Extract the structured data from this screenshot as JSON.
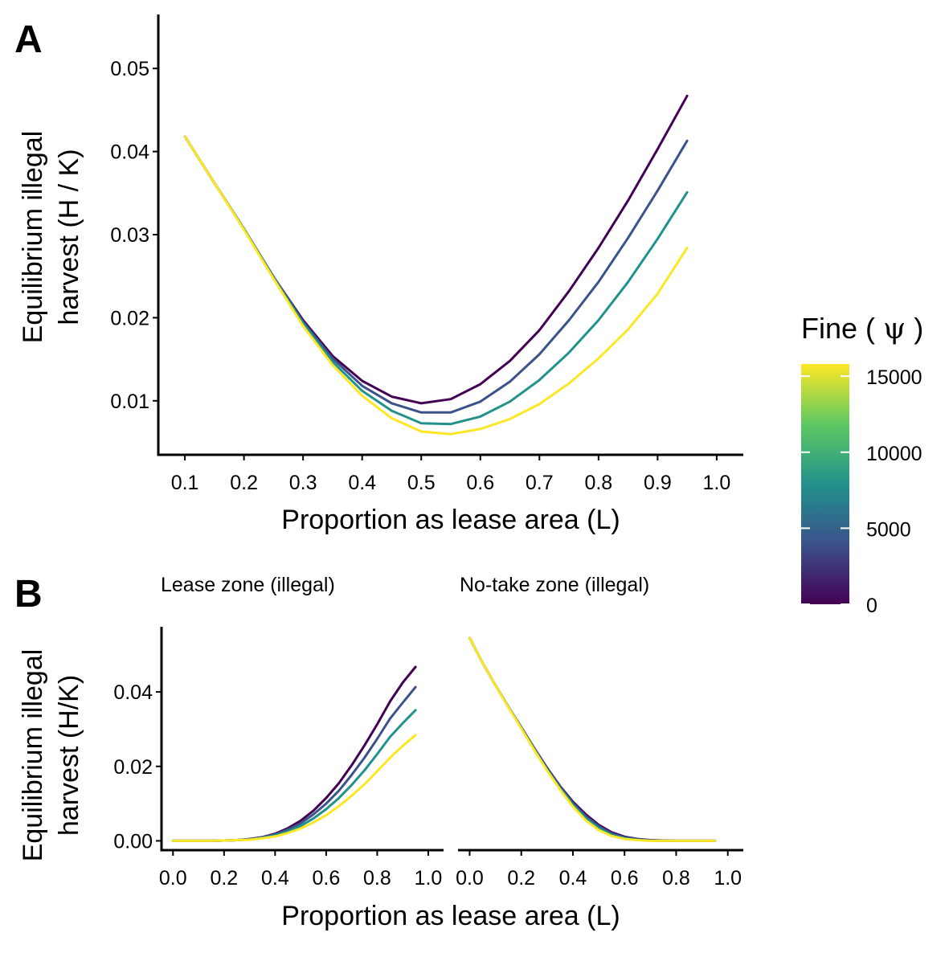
{
  "figure": {
    "panel_a_label": "A",
    "panel_b_label": "B",
    "legend": {
      "title_text": "Fine (",
      "title_symbol": "ψ",
      "title_close": ")",
      "ticks": [
        "15000",
        "10000",
        "5000",
        "0"
      ],
      "tick_values": [
        15000,
        10000,
        5000,
        0
      ],
      "range": [
        0,
        15800
      ],
      "colors": [
        "#440154",
        "#3b528b",
        "#21918c",
        "#5ec962",
        "#fde725"
      ]
    }
  },
  "chart_data": [
    {
      "type": "line",
      "panel": "A",
      "title": "",
      "xlabel": "Proportion as lease area (L)",
      "ylabel_line1": "Equilibrium illegal",
      "ylabel_line2": "harvest (H / K)",
      "xlim": [
        0.055,
        1.045
      ],
      "ylim": [
        0.0035,
        0.0565
      ],
      "xticks": [
        0.1,
        0.2,
        0.3,
        0.4,
        0.5,
        0.6,
        0.7,
        0.8,
        0.9,
        1.0
      ],
      "xtick_labels": [
        "0.1",
        "0.2",
        "0.3",
        "0.4",
        "0.5",
        "0.6",
        "0.7",
        "0.8",
        "0.9",
        "1.0"
      ],
      "yticks": [
        0.01,
        0.02,
        0.03,
        0.04,
        0.05
      ],
      "ytick_labels": [
        "0.01",
        "0.02",
        "0.03",
        "0.04",
        "0.05"
      ],
      "x": [
        0.1,
        0.15,
        0.2,
        0.25,
        0.3,
        0.35,
        0.4,
        0.45,
        0.5,
        0.55,
        0.6,
        0.65,
        0.7,
        0.75,
        0.8,
        0.85,
        0.9,
        0.95
      ],
      "series": [
        {
          "fine": 0,
          "color": "#440154",
          "values": [
            0.0418,
            0.0362,
            0.0307,
            0.0249,
            0.0197,
            0.0154,
            0.0124,
            0.0105,
            0.0097,
            0.0102,
            0.012,
            0.0148,
            0.0185,
            0.0232,
            0.0284,
            0.0341,
            0.0403,
            0.0467
          ]
        },
        {
          "fine": 5000,
          "color": "#3b528b",
          "values": [
            0.0418,
            0.0362,
            0.0307,
            0.0249,
            0.0195,
            0.0151,
            0.0118,
            0.0097,
            0.0086,
            0.0086,
            0.0099,
            0.0123,
            0.0156,
            0.0197,
            0.0243,
            0.0296,
            0.0353,
            0.0413
          ]
        },
        {
          "fine": 10000,
          "color": "#21918c",
          "values": [
            0.0418,
            0.0362,
            0.0307,
            0.0248,
            0.0193,
            0.0147,
            0.0112,
            0.0088,
            0.0073,
            0.0072,
            0.0081,
            0.0099,
            0.0125,
            0.0158,
            0.0197,
            0.0243,
            0.0295,
            0.0351
          ]
        },
        {
          "fine": 15800,
          "color": "#fde725",
          "values": [
            0.0418,
            0.0362,
            0.0306,
            0.0247,
            0.019,
            0.0143,
            0.0106,
            0.0079,
            0.0063,
            0.006,
            0.0066,
            0.0078,
            0.0096,
            0.0121,
            0.0151,
            0.0186,
            0.0229,
            0.0284
          ]
        }
      ]
    },
    {
      "type": "line",
      "panel": "B",
      "title": "",
      "ylabel_line1": "Equilibrium illegal",
      "ylabel_line2": "harvest (H/K)",
      "xlabel": "Proportion as lease area (L)",
      "ylim": [
        -0.0025,
        0.0575
      ],
      "yticks": [
        0.0,
        0.02,
        0.04
      ],
      "ytick_labels": [
        "0.00",
        "0.02",
        "0.04"
      ],
      "facets": [
        {
          "strip": "Lease zone (illegal)",
          "xlim": [
            -0.045,
            1.06
          ],
          "xticks": [
            0.0,
            0.2,
            0.4,
            0.6,
            0.8,
            1.0
          ],
          "xtick_labels": [
            "0.0",
            "0.2",
            "0.4",
            "0.6",
            "0.8",
            "1.0"
          ],
          "x": [
            0.0,
            0.05,
            0.1,
            0.15,
            0.2,
            0.25,
            0.3,
            0.35,
            0.4,
            0.45,
            0.5,
            0.55,
            0.6,
            0.65,
            0.7,
            0.75,
            0.8,
            0.85,
            0.9,
            0.95
          ],
          "series": [
            {
              "fine": 0,
              "color": "#440154",
              "values": [
                0.0,
                0.0,
                0.0,
                0.0,
                0.0001,
                0.0002,
                0.0005,
                0.001,
                0.0019,
                0.0034,
                0.0054,
                0.0081,
                0.0115,
                0.0155,
                0.0203,
                0.0256,
                0.0313,
                0.0374,
                0.0425,
                0.0467
              ]
            },
            {
              "fine": 5000,
              "color": "#3b528b",
              "values": [
                0.0,
                0.0,
                0.0,
                0.0,
                0.0001,
                0.0002,
                0.0004,
                0.0009,
                0.0017,
                0.003,
                0.0047,
                0.0071,
                0.01,
                0.0135,
                0.0177,
                0.0223,
                0.0274,
                0.0328,
                0.0371,
                0.0413
              ]
            },
            {
              "fine": 10000,
              "color": "#21918c",
              "values": [
                0.0,
                0.0,
                0.0,
                0.0,
                0.0001,
                0.0002,
                0.0004,
                0.0008,
                0.0015,
                0.0025,
                0.004,
                0.006,
                0.0085,
                0.0115,
                0.015,
                0.0189,
                0.0233,
                0.0279,
                0.0316,
                0.0351
              ]
            },
            {
              "fine": 15800,
              "color": "#fde725",
              "values": [
                0.0,
                0.0,
                0.0,
                0.0,
                0.0001,
                0.0002,
                0.0003,
                0.0007,
                0.0012,
                0.0021,
                0.0033,
                0.0049,
                0.0069,
                0.0093,
                0.0121,
                0.0152,
                0.0187,
                0.0223,
                0.0255,
                0.0284
              ]
            }
          ]
        },
        {
          "strip": "No-take zone (illegal)",
          "xlim": [
            -0.045,
            1.06
          ],
          "xticks": [
            0.0,
            0.2,
            0.4,
            0.6,
            0.8,
            1.0
          ],
          "xtick_labels": [
            "0.0",
            "0.2",
            "0.4",
            "0.6",
            "0.8",
            "1.0"
          ],
          "x": [
            0.0,
            0.05,
            0.1,
            0.15,
            0.2,
            0.25,
            0.3,
            0.35,
            0.4,
            0.45,
            0.5,
            0.55,
            0.6,
            0.65,
            0.7,
            0.75,
            0.8,
            0.85,
            0.9,
            0.95
          ],
          "series": [
            {
              "fine": 0,
              "color": "#440154",
              "values": [
                0.0545,
                0.0478,
                0.0418,
                0.036,
                0.0305,
                0.0249,
                0.0196,
                0.0147,
                0.0105,
                0.0071,
                0.0043,
                0.0023,
                0.0011,
                0.0005,
                0.0002,
                0.0001,
                0.0,
                0.0,
                0.0,
                0.0
              ]
            },
            {
              "fine": 5000,
              "color": "#3b528b",
              "values": [
                0.0545,
                0.0478,
                0.0418,
                0.036,
                0.0304,
                0.0248,
                0.0194,
                0.0145,
                0.0101,
                0.0066,
                0.0039,
                0.002,
                0.0009,
                0.0004,
                0.0001,
                0.0,
                0.0,
                0.0,
                0.0,
                0.0
              ]
            },
            {
              "fine": 10000,
              "color": "#21918c",
              "values": [
                0.0545,
                0.0478,
                0.0418,
                0.036,
                0.0303,
                0.0246,
                0.0192,
                0.0142,
                0.0097,
                0.0061,
                0.0034,
                0.0016,
                0.0007,
                0.0003,
                0.0001,
                0.0,
                0.0,
                0.0,
                0.0,
                0.0
              ]
            },
            {
              "fine": 15800,
              "color": "#fde725",
              "values": [
                0.0545,
                0.0478,
                0.0418,
                0.0359,
                0.0302,
                0.0244,
                0.0189,
                0.0138,
                0.0092,
                0.0055,
                0.0029,
                0.0013,
                0.0005,
                0.0002,
                0.0,
                0.0,
                0.0,
                0.0,
                0.0,
                0.0
              ]
            }
          ]
        }
      ]
    }
  ]
}
